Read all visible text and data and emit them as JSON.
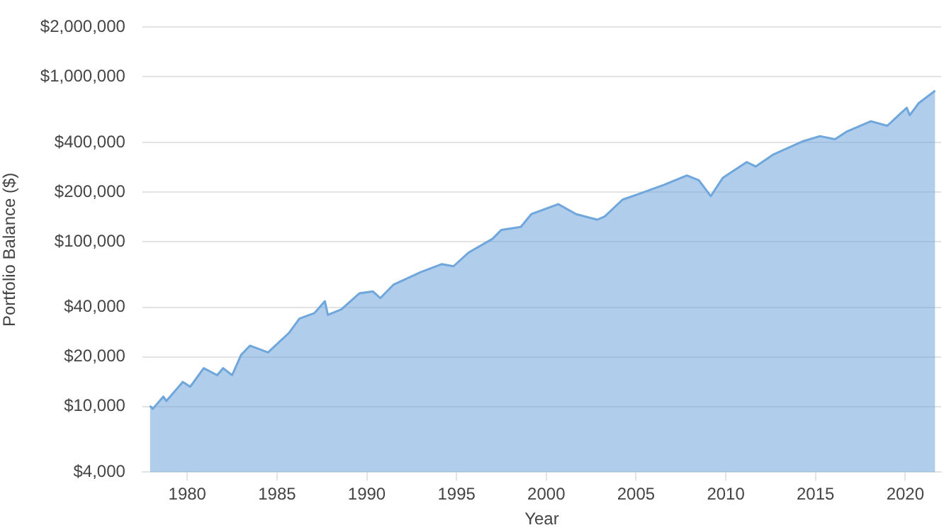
{
  "chart_data": {
    "type": "area",
    "xlabel": "Year",
    "ylabel": "Portfolio Balance ($)",
    "x": [
      "1977-12",
      "1978-02",
      "1978-09",
      "1978-11",
      "1979-10",
      "1980-03",
      "1980-12",
      "1981-09",
      "1982-01",
      "1982-07",
      "1983-01",
      "1983-07",
      "1984-07",
      "1985-09",
      "1986-04",
      "1987-02",
      "1987-09",
      "1987-11",
      "1988-08",
      "1989-08",
      "1990-05",
      "1990-10",
      "1991-07",
      "1993-01",
      "1994-03",
      "1994-11",
      "1995-09",
      "1997-01",
      "1997-07",
      "1998-08",
      "1999-03",
      "2000-09",
      "2001-09",
      "2002-11",
      "2003-04",
      "2004-04",
      "2005-03",
      "2006-08",
      "2007-11",
      "2008-07",
      "2009-03",
      "2009-11",
      "2011-03",
      "2011-09",
      "2012-09",
      "2014-04",
      "2015-04",
      "2016-02",
      "2016-10",
      "2018-02",
      "2019-01",
      "2020-02",
      "2020-04",
      "2020-10",
      "2021-09"
    ],
    "series": [
      {
        "color": "#6fa6dc",
        "values": [
          10100,
          9700,
          11500,
          10800,
          14100,
          13200,
          17100,
          15500,
          17100,
          15500,
          20600,
          23400,
          21300,
          28000,
          34200,
          36900,
          43600,
          36000,
          38900,
          48600,
          50000,
          45500,
          55000,
          65300,
          73100,
          71000,
          85900,
          104000,
          118000,
          123000,
          147000,
          169000,
          147000,
          136000,
          142000,
          180000,
          195000,
          222000,
          252000,
          236000,
          189000,
          244000,
          304000,
          286000,
          339000,
          405000,
          437000,
          418000,
          466000,
          538000,
          505000,
          650000,
          585000,
          693000,
          824000
        ]
      }
    ],
    "log": "y",
    "grid": "y",
    "legend": false,
    "xlim": [
      "1977-07",
      "2022-01"
    ],
    "xticks": [
      "1980",
      "1985",
      "1990",
      "1995",
      "2000",
      "2005",
      "2010",
      "2015",
      "2020"
    ],
    "ylim": [
      4000,
      2000000
    ],
    "yticks": [
      {
        "value": 4000,
        "label": "$4,000"
      },
      {
        "value": 10000,
        "label": "$10,000"
      },
      {
        "value": 20000,
        "label": "$20,000"
      },
      {
        "value": 40000,
        "label": "$40,000"
      },
      {
        "value": 100000,
        "label": "$100,000"
      },
      {
        "value": 200000,
        "label": "$200,000"
      },
      {
        "value": 400000,
        "label": "$400,000"
      },
      {
        "value": 1000000,
        "label": "$1,000,000"
      },
      {
        "value": 2000000,
        "label": "$2,000,000"
      }
    ]
  }
}
